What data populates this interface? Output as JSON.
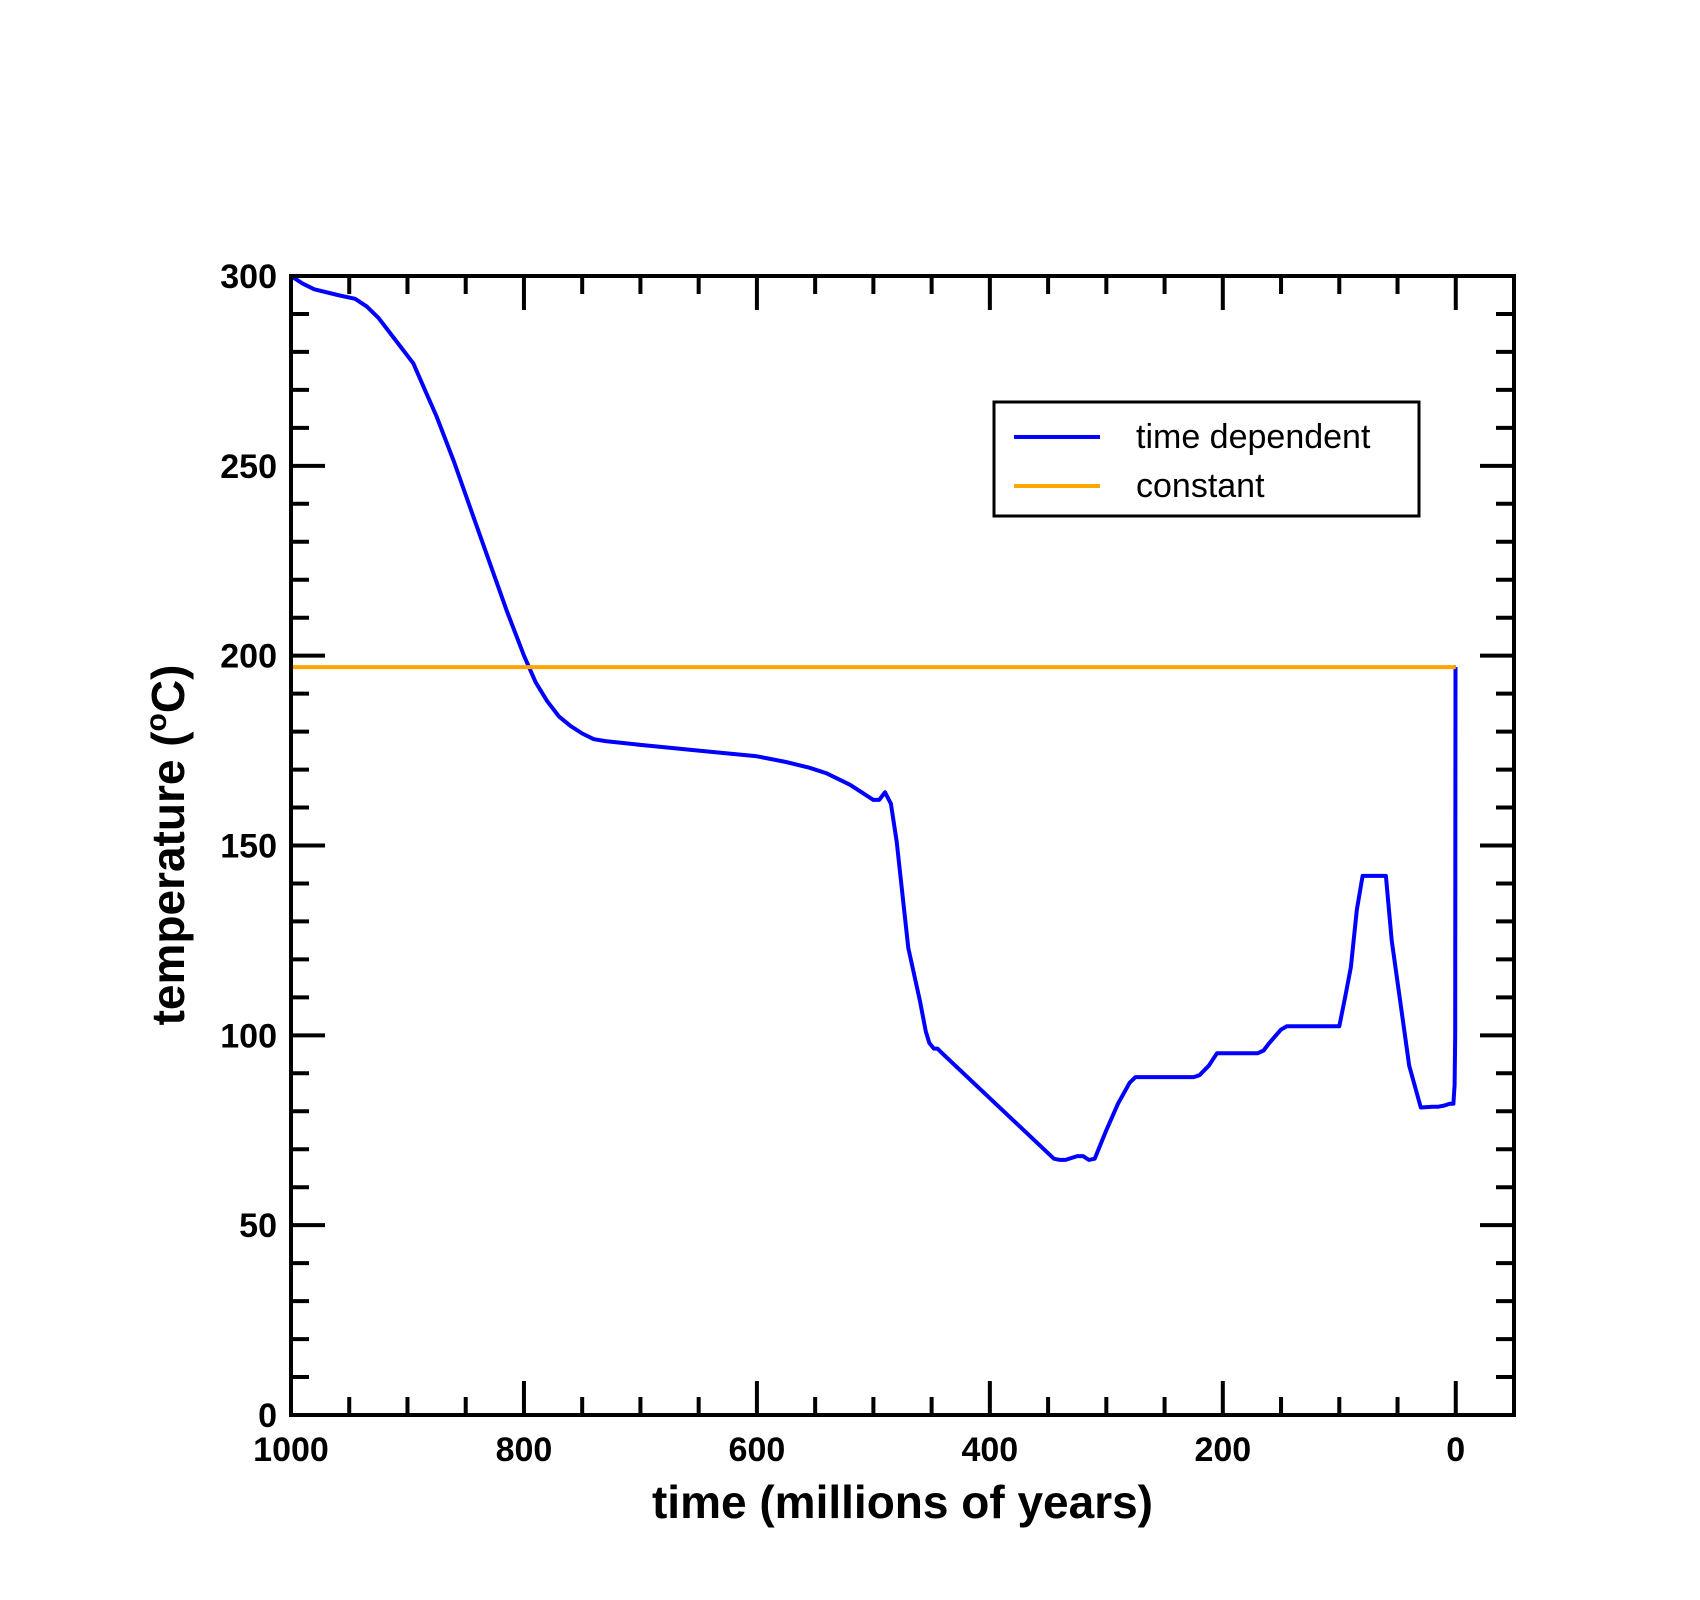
{
  "chart_data": {
    "type": "line",
    "title": "",
    "xlabel": "time  (millions of years)",
    "ylabel_main": "temperature  (",
    "ylabel_degree": "o",
    "ylabel_unit": "C)",
    "xlim": [
      1000,
      -50
    ],
    "ylim": [
      0,
      300
    ],
    "x_reversed": true,
    "x_ticks": [
      {
        "value": 1000,
        "label": "1000"
      },
      {
        "value": 800,
        "label": "800"
      },
      {
        "value": 600,
        "label": "600"
      },
      {
        "value": 400,
        "label": "400"
      },
      {
        "value": 200,
        "label": "200"
      },
      {
        "value": 0,
        "label": "0"
      }
    ],
    "y_ticks": [
      {
        "value": 0,
        "label": "0"
      },
      {
        "value": 50,
        "label": "50"
      },
      {
        "value": 100,
        "label": "100"
      },
      {
        "value": 150,
        "label": "150"
      },
      {
        "value": 200,
        "label": "200"
      },
      {
        "value": 250,
        "label": "250"
      },
      {
        "value": 300,
        "label": "300"
      }
    ],
    "x_minor_step": 50,
    "y_minor_step": 10,
    "grid": false,
    "legend_position": "top-right",
    "series": [
      {
        "name": "time dependent",
        "color": "#0000ff",
        "x": [
          1000,
          990,
          980,
          960,
          945,
          935,
          925,
          910,
          895,
          885,
          875,
          860,
          845,
          830,
          815,
          800,
          790,
          780,
          770,
          760,
          750,
          740,
          730,
          700,
          650,
          600,
          575,
          555,
          540,
          520,
          500,
          495,
          490,
          485,
          480,
          475,
          470,
          460,
          455,
          452,
          448,
          445,
          440,
          345,
          340,
          335,
          325,
          320,
          315,
          310,
          300,
          290,
          280,
          275,
          265,
          225,
          220,
          212,
          205,
          170,
          165,
          160,
          150,
          145,
          100,
          95,
          90,
          85,
          80,
          75,
          70,
          60,
          55,
          40,
          30,
          20,
          15,
          10,
          5,
          3,
          2,
          1,
          0.5,
          0.2,
          0
        ],
        "y": [
          300,
          298,
          296.5,
          295,
          294,
          292,
          289,
          283,
          277,
          270,
          263,
          251,
          238,
          225,
          212,
          200,
          193,
          188,
          184,
          181.5,
          179.5,
          178,
          177.5,
          176.5,
          175,
          173.5,
          172,
          170.5,
          169,
          166,
          162,
          162,
          164,
          161,
          151,
          137,
          123,
          109,
          101,
          98,
          96.5,
          96.5,
          95,
          67.5,
          67.2,
          67.2,
          68.2,
          68.2,
          67.2,
          67.5,
          75,
          82,
          87.5,
          89,
          89,
          89,
          89.5,
          92,
          95.3,
          95.3,
          96,
          98,
          101.5,
          102.4,
          102.4,
          110,
          118,
          133,
          142,
          142,
          142,
          142,
          125,
          92,
          81,
          81.2,
          81.2,
          81.5,
          82,
          82,
          82,
          87,
          100,
          197,
          197
        ]
      },
      {
        "name": "constant",
        "color": "#ffa500",
        "x": [
          1000,
          0
        ],
        "y": [
          197,
          197
        ]
      }
    ]
  }
}
